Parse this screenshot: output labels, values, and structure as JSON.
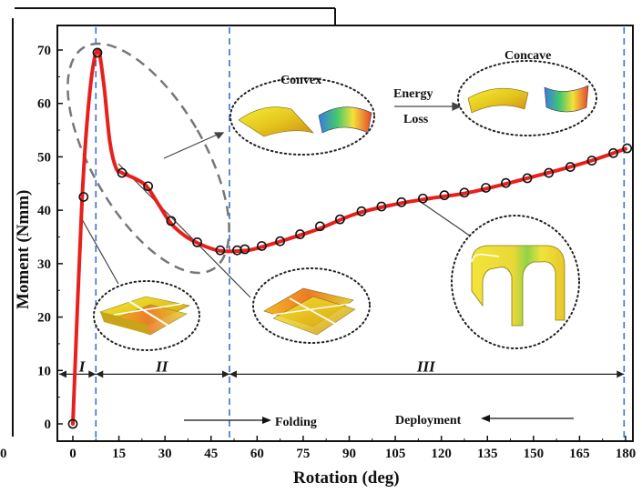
{
  "chart_data": {
    "type": "line",
    "title": "",
    "xlabel": "Rotation (deg)",
    "ylabel": "Moment (Nmm)",
    "xlim": [
      -4,
      183
    ],
    "ylim": [
      -3,
      75
    ],
    "xticks": [
      0,
      15,
      30,
      45,
      60,
      75,
      90,
      105,
      120,
      135,
      150,
      165,
      180
    ],
    "yticks": [
      0,
      10,
      20,
      30,
      40,
      50,
      60,
      70
    ],
    "grid": false,
    "line_color": "#e8201c",
    "marker_color": "#111111",
    "curve": [
      [
        0,
        0
      ],
      [
        3,
        42
      ],
      [
        5.5,
        62
      ],
      [
        8,
        70
      ],
      [
        10,
        64
      ],
      [
        12,
        53
      ],
      [
        14,
        48
      ],
      [
        16,
        47
      ],
      [
        20,
        46
      ],
      [
        24,
        44.5
      ],
      [
        28,
        41
      ],
      [
        32,
        37.5
      ],
      [
        37,
        35
      ],
      [
        42,
        33.5
      ],
      [
        47,
        32.5
      ],
      [
        51,
        32.3
      ],
      [
        55,
        32.4
      ],
      [
        58,
        32.6
      ],
      [
        62,
        33.2
      ],
      [
        70,
        34.6
      ],
      [
        80,
        36.5
      ],
      [
        92,
        39.3
      ],
      [
        104,
        41
      ],
      [
        116,
        42.2
      ],
      [
        128,
        43.2
      ],
      [
        140,
        44.8
      ],
      [
        150,
        46.3
      ],
      [
        160,
        47.8
      ],
      [
        170,
        49.5
      ],
      [
        180,
        51.5
      ]
    ],
    "markers": [
      [
        0,
        0
      ],
      [
        3.5,
        42.5
      ],
      [
        8,
        69.5
      ],
      [
        16,
        47
      ],
      [
        24.5,
        44.5
      ],
      [
        32,
        38
      ],
      [
        40.5,
        34
      ],
      [
        48,
        32.5
      ],
      [
        53.5,
        32.5
      ],
      [
        56,
        32.7
      ],
      [
        61.5,
        33.3
      ],
      [
        67.5,
        34.2
      ],
      [
        74,
        35.5
      ],
      [
        80.5,
        37
      ],
      [
        87,
        38.3
      ],
      [
        94,
        39.8
      ],
      [
        100.5,
        40.7
      ],
      [
        107,
        41.5
      ],
      [
        114,
        42.2
      ],
      [
        121,
        42.8
      ],
      [
        127.5,
        43.3
      ],
      [
        134.5,
        44.2
      ],
      [
        141,
        45.1
      ],
      [
        148,
        46
      ],
      [
        155,
        47
      ],
      [
        162,
        48.1
      ],
      [
        169,
        49.3
      ],
      [
        176,
        50.7
      ],
      [
        180.5,
        51.6
      ]
    ],
    "boundaries": [
      7.5,
      51,
      179.5
    ],
    "regions": [
      {
        "label": "I",
        "x": 3
      },
      {
        "label": "II",
        "x": 29
      },
      {
        "label": "III",
        "x": 115
      }
    ],
    "annotations": {
      "convex": "Convex",
      "concave": "Concave",
      "energy": "Energy",
      "loss": "Loss",
      "folding": "Folding",
      "deployment": "Deployment"
    },
    "left_edge_label": "0"
  }
}
